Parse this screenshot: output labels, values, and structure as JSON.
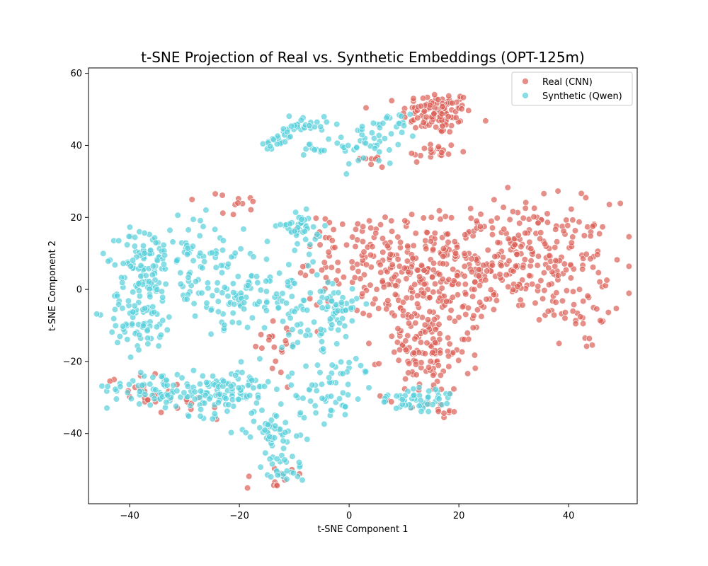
{
  "chart_data": {
    "type": "scatter",
    "title": "t-SNE Projection of Real vs. Synthetic Embeddings (OPT-125m)",
    "xlabel": "t-SNE Component 1",
    "ylabel": "t-SNE Component 2",
    "xlim": [
      -47.5,
      52.5
    ],
    "ylim": [
      -59.5,
      61.5
    ],
    "xticks": [
      -40,
      -20,
      0,
      20,
      40
    ],
    "yticks": [
      -40,
      -20,
      0,
      20,
      40,
      60
    ],
    "grid": false,
    "legend": "top-right",
    "point_alpha": 0.7,
    "series": [
      {
        "name": "Real (CNN)",
        "color": "#db5f57",
        "clusters": [
          {
            "cx": 16,
            "cy": 49,
            "sx": 3.2,
            "sy": 3,
            "n": 110
          },
          {
            "cx": 15,
            "cy": 38,
            "sx": 2.5,
            "sy": 1.5,
            "n": 20
          },
          {
            "cx": 5,
            "cy": 36,
            "sx": 2,
            "sy": 1.5,
            "n": 8
          },
          {
            "cx": 30,
            "cy": 8,
            "sx": 9,
            "sy": 8,
            "n": 330
          },
          {
            "cx": 14,
            "cy": 2,
            "sx": 5,
            "sy": 9,
            "n": 170
          },
          {
            "cx": 3,
            "cy": 8,
            "sx": 3.5,
            "sy": 7,
            "n": 70
          },
          {
            "cx": 14,
            "cy": -18,
            "sx": 4,
            "sy": 6,
            "n": 110
          },
          {
            "cx": -21,
            "cy": 23,
            "sx": 3,
            "sy": 2,
            "n": 12
          },
          {
            "cx": -14,
            "cy": -14,
            "sx": 3,
            "sy": 5,
            "n": 20
          },
          {
            "cx": -38,
            "cy": -28,
            "sx": 3,
            "sy": 2.5,
            "n": 20
          },
          {
            "cx": -28,
            "cy": -32,
            "sx": 3,
            "sy": 2,
            "n": 10
          },
          {
            "cx": 42,
            "cy": -6,
            "sx": 3,
            "sy": 2.5,
            "n": 20
          },
          {
            "cx": -4,
            "cy": 6,
            "sx": 2.5,
            "sy": 8,
            "n": 30
          },
          {
            "cx": 43,
            "cy": -15,
            "sx": 1,
            "sy": 1,
            "n": 4
          },
          {
            "cx": 17,
            "cy": -33,
            "sx": 2,
            "sy": 1.5,
            "n": 10
          },
          {
            "cx": -13,
            "cy": -52,
            "sx": 3,
            "sy": 2,
            "n": 12
          }
        ]
      },
      {
        "name": "Synthetic (Qwen)",
        "color": "#57d0db",
        "clusters": [
          {
            "cx": -37,
            "cy": 9,
            "sx": 2.5,
            "sy": 4,
            "n": 70
          },
          {
            "cx": -38,
            "cy": -6,
            "sx": 3,
            "sy": 6,
            "n": 100
          },
          {
            "cx": -36,
            "cy": -27,
            "sx": 4,
            "sy": 2.5,
            "n": 50
          },
          {
            "cx": -26,
            "cy": -29,
            "sx": 4,
            "sy": 3,
            "n": 80
          },
          {
            "cx": -19,
            "cy": -27,
            "sx": 2.5,
            "sy": 3,
            "n": 40
          },
          {
            "cx": -27,
            "cy": 10,
            "sx": 4,
            "sy": 5,
            "n": 60
          },
          {
            "cx": -23,
            "cy": -3,
            "sx": 5,
            "sy": 4,
            "n": 60
          },
          {
            "cx": -13,
            "cy": 0,
            "sx": 4,
            "sy": 6,
            "n": 60
          },
          {
            "cx": -9,
            "cy": 17,
            "sx": 2,
            "sy": 2,
            "n": 40
          },
          {
            "cx": -8,
            "cy": 46,
            "sx": 2,
            "sy": 1.5,
            "n": 25
          },
          {
            "cx": -13,
            "cy": 41,
            "sx": 1.8,
            "sy": 1.5,
            "n": 20
          },
          {
            "cx": -6,
            "cy": 38,
            "sx": 1.5,
            "sy": 1.5,
            "n": 12
          },
          {
            "cx": 3,
            "cy": 40,
            "sx": 3,
            "sy": 3,
            "n": 30
          },
          {
            "cx": 7,
            "cy": 45,
            "sx": 2.5,
            "sy": 2,
            "n": 25
          },
          {
            "cx": -2,
            "cy": -4,
            "sx": 2,
            "sy": 2.5,
            "n": 40
          },
          {
            "cx": -7,
            "cy": -11,
            "sx": 3,
            "sy": 3,
            "n": 30
          },
          {
            "cx": -14,
            "cy": -39,
            "sx": 2.5,
            "sy": 3,
            "n": 50
          },
          {
            "cx": -12,
            "cy": -50,
            "sx": 2,
            "sy": 2,
            "n": 25
          },
          {
            "cx": -5,
            "cy": -28,
            "sx": 3,
            "sy": 4,
            "n": 50
          },
          {
            "cx": 13,
            "cy": -31,
            "sx": 3,
            "sy": 2.5,
            "n": 45
          },
          {
            "cx": 1,
            "cy": -22,
            "sx": 2,
            "sy": 2,
            "n": 12
          },
          {
            "cx": 9,
            "cy": -30,
            "sx": 1.5,
            "sy": 1.5,
            "n": 8
          }
        ]
      }
    ]
  }
}
